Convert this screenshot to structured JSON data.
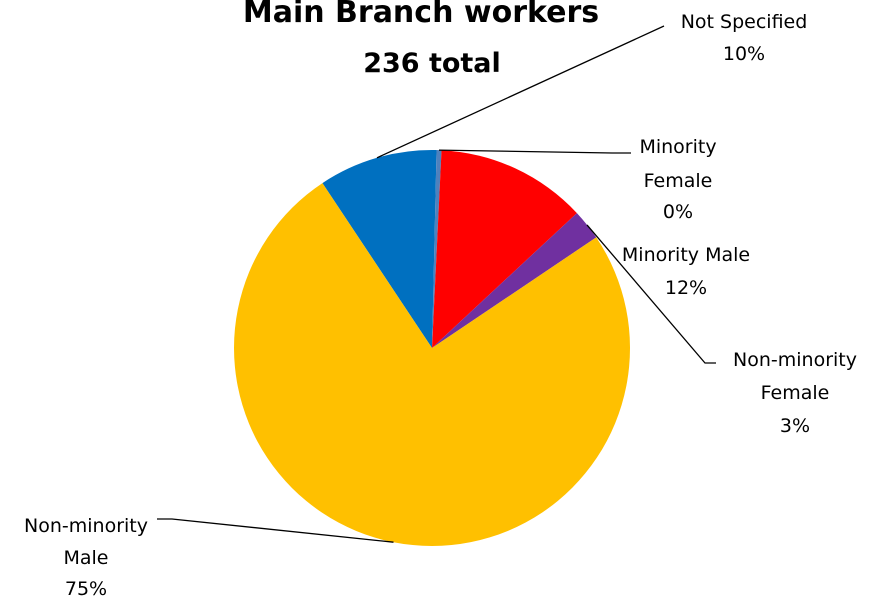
{
  "chart_data": {
    "type": "pie",
    "title": "Main Branch workers",
    "subtitle": "236 total",
    "slices": [
      {
        "label": "Not Specified",
        "percent_label": "10%",
        "value": 9.7,
        "color": "#0070C0"
      },
      {
        "label": "Minority Female",
        "percent_label": "0%",
        "value": 0.4,
        "color": "#4F81BD"
      },
      {
        "label": "Minority Male",
        "percent_label": "12%",
        "value": 12.3,
        "color": "#FF0000"
      },
      {
        "label": "Non-minority Female",
        "percent_label": "3%",
        "value": 2.5,
        "color": "#7030A0"
      },
      {
        "label": "Non-minority Male",
        "percent_label": "75%",
        "value": 75.1,
        "color": "#FFC000"
      }
    ]
  }
}
